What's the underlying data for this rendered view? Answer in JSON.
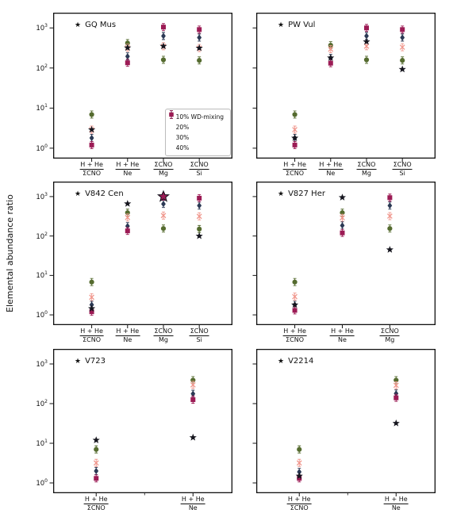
{
  "figure": {
    "ylabel": "Elemental abundance ratio",
    "yscale": "log",
    "ylim": [
      0.55,
      2400
    ],
    "ytick_exponents": [
      0,
      1,
      2,
      3
    ],
    "title_marker": "★",
    "legend_location": "lower right of first subplot",
    "grid": false,
    "series_styles": [
      {
        "name": "10% WD-mixing",
        "marker": "circle",
        "color": "#556b2f",
        "in_legend": true
      },
      {
        "name": "20%",
        "marker": "x",
        "color": "#f0968c",
        "in_legend": true
      },
      {
        "name": "30%",
        "marker": "diamond",
        "color": "#2c3a55",
        "in_legend": true
      },
      {
        "name": "40%",
        "marker": "square",
        "color": "#9c1b55",
        "in_legend": true
      },
      {
        "name": "observed",
        "marker": "star",
        "color": "#15151e",
        "in_legend": false
      }
    ]
  },
  "chart_data": [
    {
      "type": "scatter",
      "title": "GQ Mus",
      "show_legend": true,
      "show_ytick_labels": true,
      "categories": [
        {
          "num": "H + He",
          "den": "ΣCNO"
        },
        {
          "num": "H + He",
          "den": "Ne"
        },
        {
          "num": "ΣCNO",
          "den": "Mg"
        },
        {
          "num": "ΣCNO",
          "den": "Si"
        }
      ],
      "series": [
        {
          "name": "10% WD-mixing",
          "values": [
            6.9,
            420,
            160,
            155
          ]
        },
        {
          "name": "20%",
          "values": [
            2.9,
            320,
            350,
            315
          ]
        },
        {
          "name": "30%",
          "values": [
            1.8,
            195,
            630,
            575
          ]
        },
        {
          "name": "40%",
          "values": [
            1.2,
            135,
            1050,
            910
          ]
        },
        {
          "name": "observed",
          "values": [
            2.9,
            320,
            350,
            315
          ]
        }
      ]
    },
    {
      "type": "scatter",
      "title": "PW Vul",
      "show_legend": false,
      "show_ytick_labels": false,
      "categories": [
        {
          "num": "H + He",
          "den": "ΣCNO"
        },
        {
          "num": "H + He",
          "den": "Ne"
        },
        {
          "num": "ΣCNO",
          "den": "Mg"
        },
        {
          "num": "ΣCNO",
          "den": "Si"
        }
      ],
      "series": [
        {
          "name": "10% WD-mixing",
          "values": [
            6.9,
            370,
            160,
            155
          ]
        },
        {
          "name": "20%",
          "values": [
            2.9,
            295,
            350,
            330
          ]
        },
        {
          "name": "30%",
          "values": [
            1.8,
            178,
            630,
            575
          ]
        },
        {
          "name": "40%",
          "values": [
            1.2,
            132,
            1000,
            910
          ]
        },
        {
          "name": "observed",
          "values": [
            1.8,
            180,
            455,
            93
          ]
        }
      ]
    },
    {
      "type": "scatter",
      "title": "V842 Cen",
      "show_legend": false,
      "show_ytick_labels": true,
      "categories": [
        {
          "num": "H + He",
          "den": "ΣCNO"
        },
        {
          "num": "H + He",
          "den": "Ne"
        },
        {
          "num": "ΣCNO",
          "den": "Mg"
        },
        {
          "num": "ΣCNO",
          "den": "Si"
        }
      ],
      "series": [
        {
          "name": "10% WD-mixing",
          "values": [
            6.8,
            390,
            155,
            150
          ]
        },
        {
          "name": "20%",
          "values": [
            2.8,
            295,
            330,
            315
          ]
        },
        {
          "name": "30%",
          "values": [
            1.8,
            178,
            650,
            590
          ]
        },
        {
          "name": "40%",
          "values": [
            1.2,
            135,
            1000,
            910
          ]
        },
        {
          "name": "observed",
          "values": [
            1.45,
            660,
            1000,
            100
          ]
        }
      ],
      "highlight_star": {
        "category_index": 2,
        "value": 1000,
        "fill": "#9c1b55",
        "edge": "#15151e"
      }
    },
    {
      "type": "scatter",
      "title": "V827 Her",
      "show_legend": false,
      "show_ytick_labels": false,
      "categories": [
        {
          "num": "H + He",
          "den": "ΣCNO"
        },
        {
          "num": "H + He",
          "den": "Ne"
        },
        {
          "num": "ΣCNO",
          "den": "Mg"
        }
      ],
      "series": [
        {
          "name": "10% WD-mixing",
          "values": [
            6.8,
            390,
            155
          ]
        },
        {
          "name": "20%",
          "values": [
            2.9,
            290,
            320
          ]
        },
        {
          "name": "30%",
          "values": [
            1.8,
            185,
            590
          ]
        },
        {
          "name": "40%",
          "values": [
            1.3,
            120,
            940
          ]
        },
        {
          "name": "observed",
          "values": [
            1.8,
            950,
            45
          ]
        }
      ]
    },
    {
      "type": "scatter",
      "title": "V723",
      "show_legend": false,
      "show_ytick_labels": true,
      "categories": [
        {
          "num": "H + He",
          "den": "ΣCNO"
        },
        {
          "num": "H + He",
          "den": "Ne"
        }
      ],
      "series": [
        {
          "name": "10% WD-mixing",
          "values": [
            7.0,
            390
          ]
        },
        {
          "name": "20%",
          "values": [
            3.2,
            297
          ]
        },
        {
          "name": "30%",
          "values": [
            2.0,
            177
          ]
        },
        {
          "name": "40%",
          "values": [
            1.3,
            126
          ]
        },
        {
          "name": "observed",
          "values": [
            12,
            14
          ]
        }
      ]
    },
    {
      "type": "scatter",
      "title": "V2214",
      "show_legend": false,
      "show_ytick_labels": false,
      "categories": [
        {
          "num": "H + He",
          "den": "ΣCNO"
        },
        {
          "num": "H + He",
          "den": "Ne"
        }
      ],
      "series": [
        {
          "name": "10% WD-mixing",
          "values": [
            7.0,
            390
          ]
        },
        {
          "name": "20%",
          "values": [
            3.2,
            290
          ]
        },
        {
          "name": "30%",
          "values": [
            1.9,
            180
          ]
        },
        {
          "name": "40%",
          "values": [
            1.3,
            140
          ]
        },
        {
          "name": "observed",
          "values": [
            1.5,
            32
          ]
        }
      ]
    }
  ]
}
